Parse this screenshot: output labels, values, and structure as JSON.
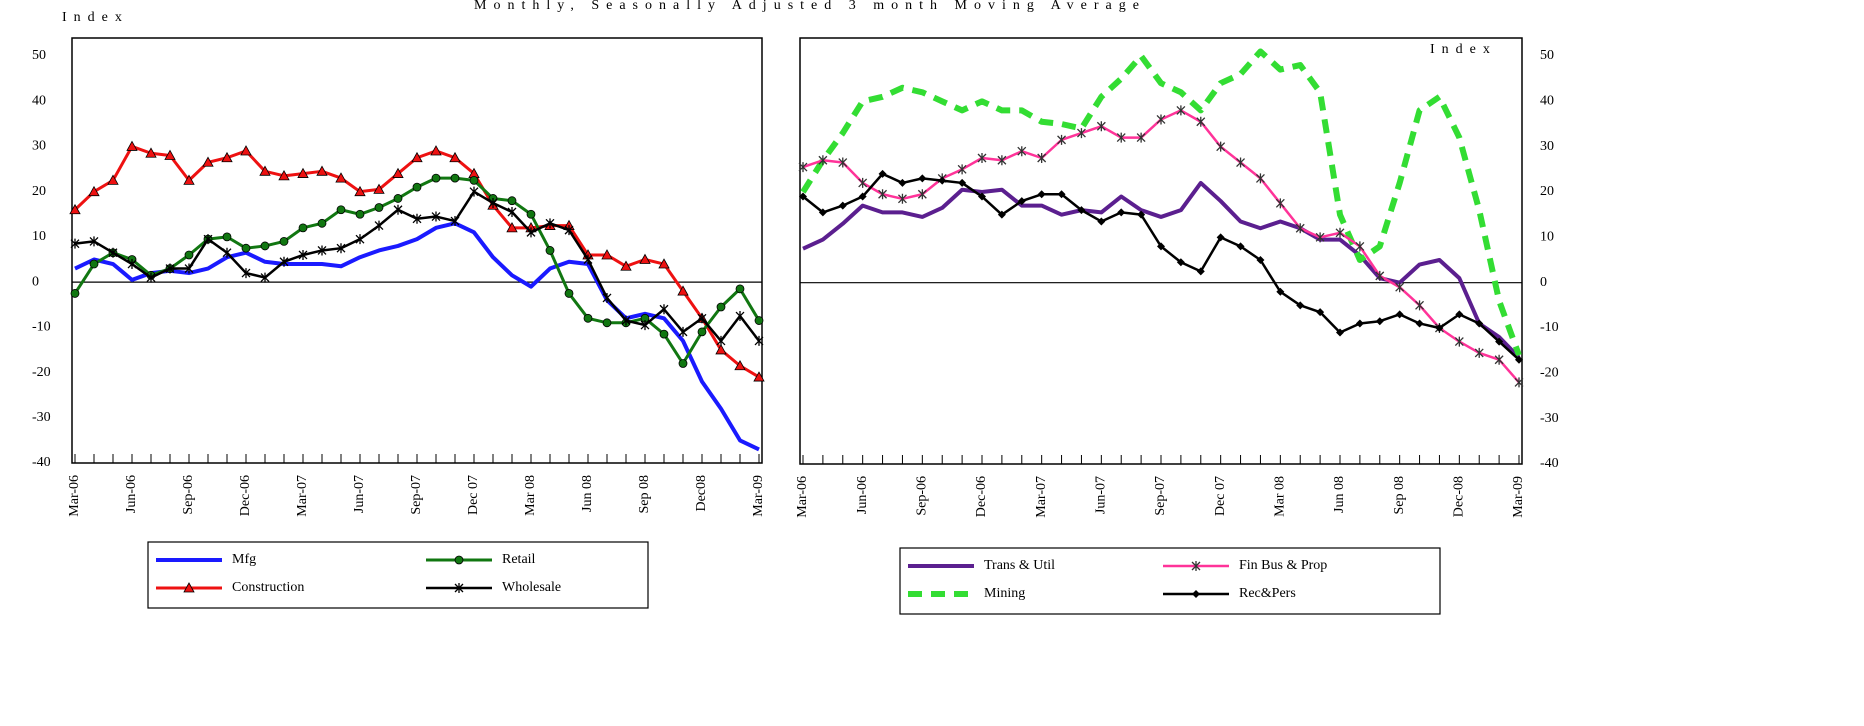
{
  "chart_data": [
    {
      "type": "line",
      "title": "Monthly, Seasonally Adjusted 3 month Moving Average",
      "y_label": "Index",
      "y_axis_side": "left",
      "zero_line": true,
      "categories": [
        "Mar-06",
        null,
        null,
        "Jun-06",
        null,
        null,
        "Sep-06",
        null,
        null,
        "Dec-06",
        null,
        null,
        "Mar-07",
        null,
        null,
        "Jun-07",
        null,
        null,
        "Sep-07",
        null,
        null,
        "Dec 07",
        null,
        null,
        "Mar 08",
        null,
        null,
        "Jun 08",
        null,
        null,
        "Sep 08",
        null,
        null,
        "Dec08",
        null,
        null,
        "Mar-09"
      ],
      "ylim": [
        -40,
        50
      ],
      "yticks": [
        50,
        40,
        30,
        20,
        10,
        0,
        -10,
        -20,
        -30,
        -40
      ],
      "series": [
        {
          "name": "Mfg",
          "color": "#1a1aff",
          "width": 4,
          "marker": "none",
          "dash": false,
          "values": [
            3,
            5,
            4,
            0.5,
            2,
            2.5,
            2,
            3,
            5.5,
            6.5,
            4.5,
            4,
            4,
            4,
            3.5,
            5.5,
            7,
            8,
            9.5,
            12,
            13,
            11,
            5.5,
            1.5,
            -1,
            3,
            4.5,
            4,
            -4,
            -8,
            -7,
            -8,
            -13,
            -22,
            -28,
            -35,
            -37
          ]
        },
        {
          "name": "Construction",
          "color": "#ee1111",
          "width": 3,
          "marker": "triangle",
          "dash": false,
          "values": [
            16,
            20,
            22.5,
            30,
            28.5,
            28,
            22.5,
            26.5,
            27.5,
            29,
            24.5,
            23.5,
            24,
            24.5,
            23,
            20,
            20.5,
            24,
            27.5,
            29,
            27.5,
            24,
            17,
            12,
            12,
            12.5,
            12.5,
            6,
            6,
            3.5,
            5,
            4,
            -2,
            -8,
            -15,
            -18.5,
            -21
          ]
        },
        {
          "name": "Retail",
          "color": "#117711",
          "width": 3,
          "marker": "circle",
          "dash": false,
          "values": [
            -2.5,
            4,
            6.5,
            5,
            1.5,
            3,
            6,
            9.5,
            10,
            7.5,
            8,
            9,
            12,
            13,
            16,
            15,
            16.5,
            18.5,
            21,
            23,
            23,
            22.5,
            18.5,
            18,
            15,
            7,
            -2.5,
            -8,
            -9,
            -9,
            -8,
            -11.5,
            -18,
            -11,
            -5.5,
            -1.5,
            -8.5
          ]
        },
        {
          "name": "Wholesale",
          "color": "#000000",
          "width": 2.5,
          "marker": "cross",
          "dash": false,
          "values": [
            8.5,
            9,
            6.5,
            4,
            1,
            3,
            3,
            9.5,
            6.5,
            2,
            1,
            4.5,
            6,
            7,
            7.5,
            9.5,
            12.5,
            16,
            14,
            14.5,
            13.5,
            20,
            17.5,
            15.5,
            11,
            13,
            11.5,
            5,
            -3.5,
            -8.5,
            -9.5,
            -6,
            -11,
            -8,
            -13,
            -7.5,
            -13
          ]
        }
      ]
    },
    {
      "type": "line",
      "y_label": "Index",
      "y_axis_side": "right",
      "zero_line": true,
      "categories": [
        "Mar-06",
        null,
        null,
        "Jun-06",
        null,
        null,
        "Sep-06",
        null,
        null,
        "Dec-06",
        null,
        null,
        "Mar-07",
        null,
        null,
        "Jun-07",
        null,
        null,
        "Sep-07",
        null,
        null,
        "Dec 07",
        null,
        null,
        "Mar 08",
        null,
        null,
        "Jun 08",
        null,
        null,
        "Sep 08",
        null,
        null,
        "Dec-08",
        null,
        null,
        "Mar-09"
      ],
      "ylim": [
        -40,
        50
      ],
      "yticks": [
        50,
        40,
        30,
        20,
        10,
        0,
        -10,
        -20,
        -30,
        -40
      ],
      "series": [
        {
          "name": "Trans & Util",
          "color": "#5b1f8f",
          "width": 4,
          "marker": "none",
          "dash": false,
          "values": [
            7.5,
            9.5,
            13,
            17,
            15.5,
            15.5,
            14.5,
            16.5,
            20.5,
            20,
            20.5,
            17,
            17,
            15,
            16,
            15.5,
            19,
            16,
            14.5,
            16,
            22,
            18,
            13.5,
            12,
            13.5,
            12,
            9.5,
            9.5,
            6,
            1,
            0,
            4,
            5,
            1,
            -9,
            -12,
            -16.5
          ]
        },
        {
          "name": "Mining",
          "color": "#33dd33",
          "width": 6,
          "marker": "none",
          "dash": true,
          "values": [
            20,
            27,
            33,
            40,
            41,
            43,
            42,
            40,
            38,
            40,
            38,
            38,
            35.5,
            35,
            34,
            41,
            45,
            50,
            44,
            42,
            38,
            44,
            46,
            51,
            47,
            48,
            42,
            15,
            5,
            8,
            22,
            38,
            41,
            32,
            16,
            -4,
            -16
          ]
        },
        {
          "name": "Fin Bus & Prop",
          "color": "#ff3399",
          "width": 2.5,
          "marker": "star",
          "dash": false,
          "values": [
            25.5,
            27,
            26.5,
            22,
            19.5,
            18.5,
            19.5,
            23,
            25,
            27.5,
            27,
            29,
            27.5,
            31.5,
            33,
            34.5,
            32,
            32,
            36,
            38,
            35.5,
            30,
            26.5,
            23,
            17.5,
            12,
            10,
            11,
            8,
            1.5,
            -1,
            -5,
            -10,
            -13,
            -15.5,
            -17,
            -22
          ]
        },
        {
          "name": "Rec&Pers",
          "color": "#000000",
          "width": 2.5,
          "marker": "diamond",
          "dash": false,
          "values": [
            19,
            15.5,
            17,
            19,
            24,
            22,
            23,
            22.5,
            22,
            19,
            15,
            18,
            19.5,
            19.5,
            16,
            13.5,
            15.5,
            15,
            8,
            4.5,
            2.5,
            10,
            8,
            5,
            -2,
            -5,
            -6.5,
            -11,
            -9,
            -8.5,
            -7,
            -9,
            -10,
            -7,
            -9,
            -13,
            -17
          ]
        }
      ]
    }
  ]
}
